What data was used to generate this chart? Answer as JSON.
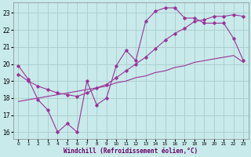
{
  "xlabel": "Windchill (Refroidissement éolien,°C)",
  "bg_color": "#c8eaea",
  "grid_color": "#b0d0d0",
  "line_color": "#993399",
  "xlim": [
    -0.5,
    23.5
  ],
  "ylim": [
    15.6,
    23.6
  ],
  "xticks": [
    0,
    1,
    2,
    3,
    4,
    5,
    6,
    7,
    8,
    9,
    10,
    11,
    12,
    13,
    14,
    15,
    16,
    17,
    18,
    19,
    20,
    21,
    22,
    23
  ],
  "yticks": [
    16,
    17,
    18,
    19,
    20,
    21,
    22,
    23
  ],
  "line1_x": [
    0,
    1,
    2,
    3,
    4,
    5,
    6,
    7,
    8,
    9,
    10,
    11,
    12,
    13,
    14,
    15,
    16,
    17,
    18,
    19,
    20,
    21,
    22,
    23
  ],
  "line1_y": [
    19.9,
    19.1,
    17.9,
    17.3,
    16.0,
    16.5,
    16.0,
    19.0,
    17.6,
    18.0,
    19.9,
    20.8,
    20.2,
    22.5,
    23.1,
    23.3,
    23.3,
    22.7,
    22.7,
    22.4,
    22.4,
    22.4,
    21.5,
    20.2
  ],
  "line2_x": [
    0,
    1,
    2,
    3,
    4,
    5,
    6,
    7,
    8,
    9,
    10,
    11,
    12,
    13,
    14,
    15,
    16,
    17,
    18,
    19,
    20,
    21,
    22,
    23
  ],
  "line2_y": [
    19.4,
    19.0,
    18.7,
    18.5,
    18.3,
    18.2,
    18.1,
    18.3,
    18.6,
    18.8,
    19.2,
    19.6,
    20.0,
    20.4,
    20.9,
    21.4,
    21.8,
    22.1,
    22.5,
    22.6,
    22.8,
    22.8,
    22.9,
    22.8
  ],
  "line3_x": [
    0,
    1,
    2,
    3,
    4,
    5,
    6,
    7,
    8,
    9,
    10,
    11,
    12,
    13,
    14,
    15,
    16,
    17,
    18,
    19,
    20,
    21,
    22,
    23
  ],
  "line3_y": [
    17.8,
    17.9,
    18.0,
    18.1,
    18.2,
    18.3,
    18.4,
    18.5,
    18.6,
    18.7,
    18.9,
    19.0,
    19.2,
    19.3,
    19.5,
    19.6,
    19.8,
    19.9,
    20.1,
    20.2,
    20.3,
    20.4,
    20.5,
    20.1
  ]
}
